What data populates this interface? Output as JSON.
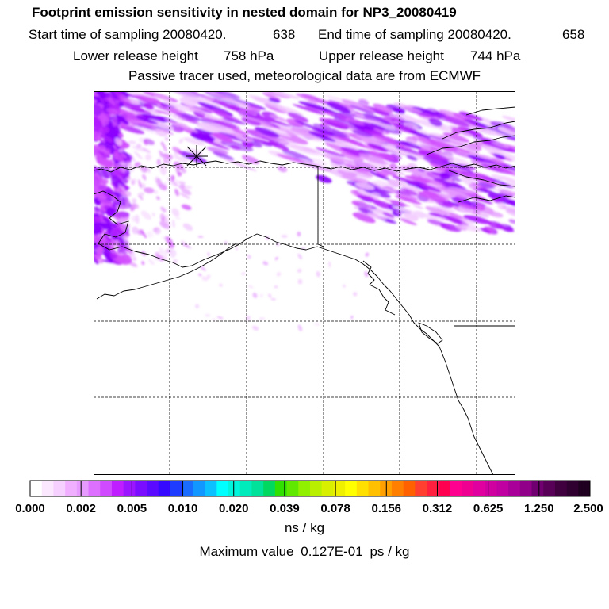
{
  "header": {
    "title": "Footprint emission sensitivity in nested domain for NP3_20080419",
    "start_label": "Start time of sampling 20080420.",
    "start_value": "638",
    "end_label": "End time of sampling 20080420.",
    "end_value": "658",
    "lower_label": "Lower release height",
    "lower_value": "758 hPa",
    "upper_label": "Upper release height",
    "upper_value": "744 hPa",
    "tracer_line": "Passive tracer used, meteorological data are from ECMWF"
  },
  "colorbar": {
    "tick_labels": [
      "0.000",
      "0.002",
      "0.005",
      "0.010",
      "0.020",
      "0.039",
      "0.078",
      "0.156",
      "0.312",
      "0.625",
      "1.250",
      "2.500"
    ],
    "colors": [
      "#ffffff",
      "#fbe8ff",
      "#f6d0ff",
      "#f0b0ff",
      "#e79bff",
      "#dd70ff",
      "#d04bff",
      "#bf1fff",
      "#9b16ff",
      "#7a0dff",
      "#5a0aff",
      "#3508ff",
      "#1e3cff",
      "#1a6cff",
      "#1296ff",
      "#0cc0ff",
      "#00ffff",
      "#00f5dd",
      "#00ebbb",
      "#00e199",
      "#00d860",
      "#30e000",
      "#60e800",
      "#90f000",
      "#b8f000",
      "#d8f000",
      "#eef000",
      "#ffff00",
      "#ffe000",
      "#ffc000",
      "#ffa000",
      "#ff8000",
      "#ff6000",
      "#ff4030",
      "#ff2040",
      "#ff0050",
      "#ff0090",
      "#f00090",
      "#e000a0",
      "#d000a0",
      "#c000a0",
      "#a80098",
      "#900088",
      "#700070",
      "#580058",
      "#400040",
      "#300030",
      "#200020"
    ],
    "unit": "ns / kg"
  },
  "max_value": {
    "label": "Maximum value",
    "value": "0.127E-01",
    "unit": "ps / kg"
  },
  "map": {
    "frame_color": "#000000",
    "coast_color": "#000000",
    "grid_color": "#000000",
    "plume_colors": [
      "#8a00ff",
      "#b01cff",
      "#d250ff",
      "#e49aff",
      "#f3ccff"
    ],
    "release_marker": "release-site-star-icon"
  }
}
